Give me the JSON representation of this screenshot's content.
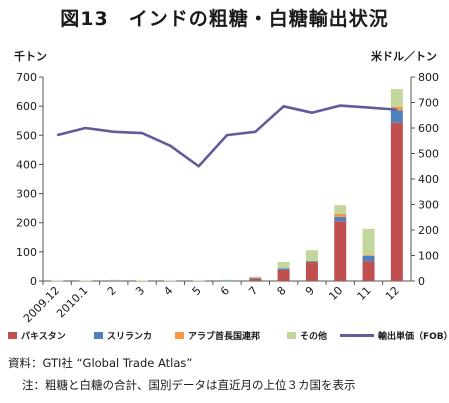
{
  "title": "図13　インドの粗糖・白糖輸出状況",
  "unit_left": "千トン",
  "unit_right": "米ドル／トン",
  "legend": {
    "pakistan": "パキスタン",
    "srilanka": "スリランカ",
    "uae": "アラブ首長国連邦",
    "other": "その他",
    "price": "輸出単価（FOB）"
  },
  "source": "資料：GTI社 “Global Trade Atlas”",
  "note": "注：粗糖と白糖の合計、国別データは直近月の上位３カ国を表示",
  "colors": {
    "pakistan": "#c0504d",
    "srilanka": "#4f81bd",
    "uae": "#f79646",
    "other": "#c3d69b",
    "price": "#615d9a"
  },
  "chart_data": {
    "type": "bar",
    "stacked": true,
    "categories": [
      "2009.12",
      "2010.1",
      "2",
      "3",
      "4",
      "5",
      "6",
      "7",
      "8",
      "9",
      "10",
      "11",
      "12"
    ],
    "series": [
      {
        "name": "パキスタン",
        "values": [
          0,
          0,
          0,
          0,
          0,
          0,
          0,
          8,
          38,
          65,
          205,
          68,
          543
        ]
      },
      {
        "name": "スリランカ",
        "values": [
          0,
          0,
          3,
          0,
          0,
          0,
          2,
          3,
          5,
          3,
          15,
          18,
          42
        ]
      },
      {
        "name": "アラブ首長国連邦",
        "values": [
          0,
          0,
          0,
          0,
          0,
          0,
          0,
          0,
          0,
          0,
          10,
          3,
          12
        ]
      },
      {
        "name": "その他",
        "values": [
          2,
          2,
          1,
          2,
          2,
          2,
          2,
          4,
          22,
          38,
          30,
          90,
          62
        ]
      }
    ],
    "line_series": {
      "name": "輸出単価（FOB）",
      "axis": "right",
      "values": [
        572,
        600,
        585,
        580,
        530,
        450,
        572,
        585,
        685,
        660,
        688,
        680,
        672
      ]
    },
    "y_left": {
      "min": 0,
      "max": 700,
      "ticks": [
        0,
        100,
        200,
        300,
        400,
        500,
        600,
        700
      ]
    },
    "y_right": {
      "min": 0,
      "max": 800,
      "ticks": [
        0,
        100,
        200,
        300,
        400,
        500,
        600,
        700,
        800
      ]
    },
    "grid": false,
    "legend_position": "bottom"
  }
}
